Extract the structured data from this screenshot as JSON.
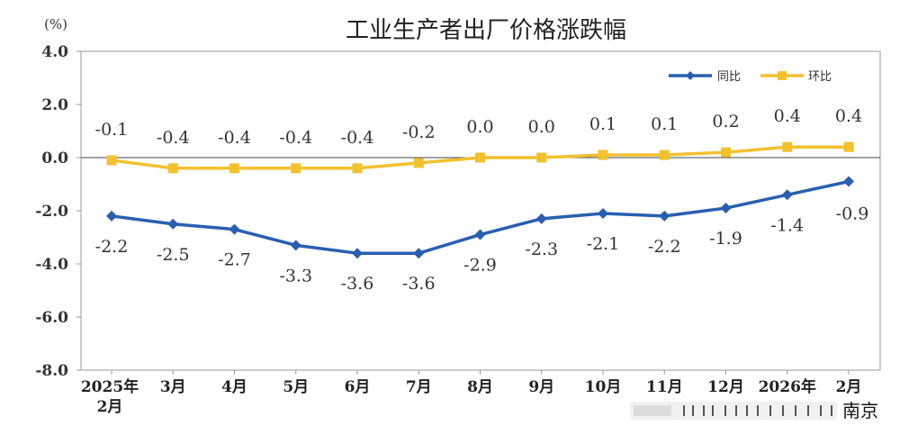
{
  "chart_data": {
    "type": "line",
    "title": "工业生产者出厂价格涨跌幅",
    "unit_label": "(%)",
    "xlabel": "",
    "ylabel": "",
    "ylim": [
      -8.0,
      4.0
    ],
    "yticks": [
      "4.0",
      "2.0",
      "0.0",
      "-2.0",
      "-4.0",
      "-6.0",
      "-8.0"
    ],
    "ytick_values": [
      4,
      2,
      0,
      -2,
      -4,
      -6,
      -8
    ],
    "categories": [
      [
        "2025年",
        "2月"
      ],
      [
        "3月"
      ],
      [
        "4月"
      ],
      [
        "5月"
      ],
      [
        "6月"
      ],
      [
        "7月"
      ],
      [
        "8月"
      ],
      [
        "9月"
      ],
      [
        "10月"
      ],
      [
        "11月"
      ],
      [
        "12月"
      ],
      [
        "2026年"
      ],
      [
        "2月"
      ]
    ],
    "series": [
      {
        "name": "同比",
        "color": "#2a5fb0",
        "marker": "diamond",
        "values": [
          -2.2,
          -2.5,
          -2.7,
          -3.3,
          -3.6,
          -3.6,
          -2.9,
          -2.3,
          -2.1,
          -2.2,
          -1.9,
          -1.4,
          -0.9
        ],
        "labels": [
          "-2.2",
          "-2.5",
          "-2.7",
          "-3.3",
          "-3.6",
          "-3.6",
          "-2.9",
          "-2.3",
          "-2.1",
          "-2.2",
          "-1.9",
          "-1.4",
          "-0.9"
        ]
      },
      {
        "name": "环比",
        "color": "#f2c12e",
        "marker": "square",
        "values": [
          -0.1,
          -0.4,
          -0.4,
          -0.4,
          -0.4,
          -0.2,
          0.0,
          0.0,
          0.1,
          0.1,
          0.2,
          0.4,
          0.4
        ],
        "labels": [
          "-0.1",
          "-0.4",
          "-0.4",
          "-0.4",
          "-0.4",
          "-0.2",
          "0.0",
          "0.0",
          "0.1",
          "0.1",
          "0.2",
          "0.4",
          "0.4"
        ]
      }
    ],
    "legend_position": "top-right",
    "grid": false
  },
  "watermark": {
    "text": "南京",
    "icon": "watermark-logo-icon"
  }
}
